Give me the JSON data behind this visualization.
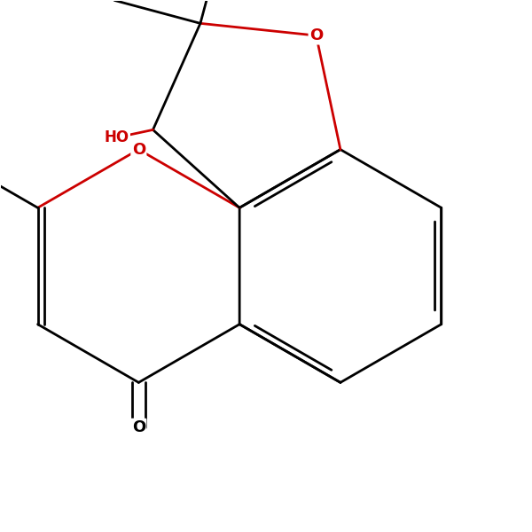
{
  "bg_color": "#ffffff",
  "bond_color": "#000000",
  "red_color": "#cc0000",
  "lw": 2.0,
  "figsize": [
    6.0,
    6.0
  ],
  "dpi": 100,
  "atoms": {
    "comment": "All coordinates in data units (0-10 range), placed to match target image",
    "note": "y increases upward"
  }
}
